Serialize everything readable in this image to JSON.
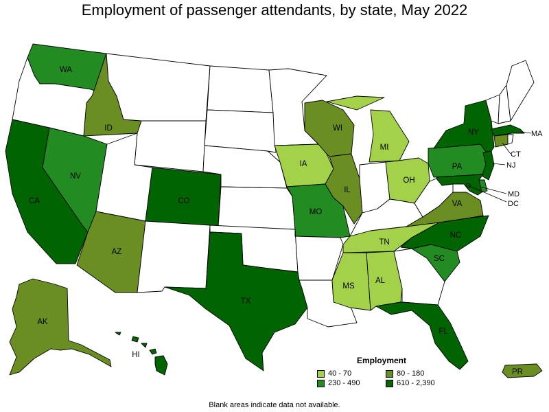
{
  "title": "Employment of passenger attendants, by state, May 2022",
  "legend": {
    "title": "Employment",
    "items": [
      {
        "label": "40 - 70",
        "color": "#a3d14a"
      },
      {
        "label": "80 - 180",
        "color": "#6b8e23"
      },
      {
        "label": "230 - 490",
        "color": "#228b22"
      },
      {
        "label": "610 - 2,390",
        "color": "#006400"
      }
    ]
  },
  "footnote": "Blank areas indicate data not available.",
  "colors": {
    "no_data": "#ffffff",
    "border": "#000000"
  },
  "states": [
    {
      "code": "WA",
      "bin": 2
    },
    {
      "code": "OR",
      "bin": null
    },
    {
      "code": "CA",
      "bin": 3
    },
    {
      "code": "ID",
      "bin": 1
    },
    {
      "code": "NV",
      "bin": 2
    },
    {
      "code": "MT",
      "bin": null
    },
    {
      "code": "WY",
      "bin": null
    },
    {
      "code": "UT",
      "bin": null
    },
    {
      "code": "AZ",
      "bin": 1
    },
    {
      "code": "CO",
      "bin": 3
    },
    {
      "code": "NM",
      "bin": null
    },
    {
      "code": "ND",
      "bin": null
    },
    {
      "code": "SD",
      "bin": null
    },
    {
      "code": "NE",
      "bin": null
    },
    {
      "code": "KS",
      "bin": null
    },
    {
      "code": "OK",
      "bin": null
    },
    {
      "code": "TX",
      "bin": 3
    },
    {
      "code": "MN",
      "bin": null
    },
    {
      "code": "IA",
      "bin": 0
    },
    {
      "code": "MO",
      "bin": 2
    },
    {
      "code": "AR",
      "bin": null
    },
    {
      "code": "LA",
      "bin": null
    },
    {
      "code": "WI",
      "bin": 1
    },
    {
      "code": "IL",
      "bin": 1
    },
    {
      "code": "MI",
      "bin": 0
    },
    {
      "code": "IN",
      "bin": null
    },
    {
      "code": "OH",
      "bin": 0
    },
    {
      "code": "KY",
      "bin": null
    },
    {
      "code": "TN",
      "bin": 0
    },
    {
      "code": "MS",
      "bin": 0
    },
    {
      "code": "AL",
      "bin": 0
    },
    {
      "code": "GA",
      "bin": null
    },
    {
      "code": "FL",
      "bin": 3
    },
    {
      "code": "SC",
      "bin": 2
    },
    {
      "code": "NC",
      "bin": 3
    },
    {
      "code": "VA",
      "bin": 1
    },
    {
      "code": "WV",
      "bin": null
    },
    {
      "code": "PA",
      "bin": 2
    },
    {
      "code": "NY",
      "bin": 3
    },
    {
      "code": "VT",
      "bin": null
    },
    {
      "code": "NH",
      "bin": null
    },
    {
      "code": "ME",
      "bin": null
    },
    {
      "code": "MA",
      "bin": 3
    },
    {
      "code": "CT",
      "bin": 1
    },
    {
      "code": "RI",
      "bin": null
    },
    {
      "code": "NJ",
      "bin": 3
    },
    {
      "code": "DE",
      "bin": 2
    },
    {
      "code": "MD",
      "bin": 3
    },
    {
      "code": "DC",
      "bin": 3
    },
    {
      "code": "AK",
      "bin": 1
    },
    {
      "code": "HI",
      "bin": 3
    },
    {
      "code": "PR",
      "bin": 1
    }
  ]
}
